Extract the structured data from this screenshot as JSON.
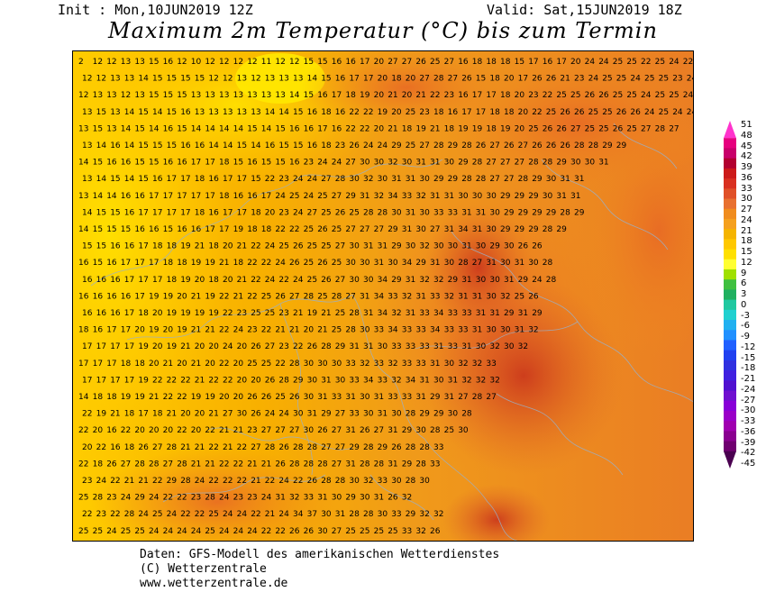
{
  "header": {
    "init": "Init : Mon,10JUN2019 12Z",
    "valid": "Valid: Sat,15JUN2019 18Z",
    "title": "Maximum 2m Temperatur (°C) bis zum Termin"
  },
  "legend": {
    "labels": [
      "51",
      "48",
      "45",
      "42",
      "39",
      "36",
      "33",
      "30",
      "27",
      "24",
      "21",
      "18",
      "15",
      "12",
      "9",
      "6",
      "3",
      "0",
      "-3",
      "-6",
      "-9",
      "-12",
      "-15",
      "-18",
      "-21",
      "-24",
      "-27",
      "-30",
      "-33",
      "-36",
      "-39",
      "-42",
      "-45"
    ],
    "colors": [
      "#ff33cc",
      "#e6007e",
      "#c8006a",
      "#b20030",
      "#cc1a1a",
      "#d93020",
      "#e05028",
      "#e87030",
      "#f08c1e",
      "#f5a01e",
      "#f5b400",
      "#ffc800",
      "#ffe000",
      "#ffff33",
      "#a0e000",
      "#40c040",
      "#20b060",
      "#20c8a0",
      "#20d0d0",
      "#20b0f0",
      "#2090ff",
      "#2060ff",
      "#2040f0",
      "#3030e0",
      "#4020e0",
      "#5010d0",
      "#7010d0",
      "#8800d8",
      "#9a00c8",
      "#a000b0",
      "#8a0090",
      "#700070",
      "#4a0050"
    ]
  },
  "chart_data": {
    "type": "heatmap",
    "rows": [
      "2 12 12 13 13 15 16 12 10 12 12 12 12 11 12 12 15 15 16 16 17 20 27 27 26 25 27 16 18 18 18 15 17 16 17 20 24 24 25 25 22 25 24 22",
      "12 12 13 13 14 15 15 15 15 12 12 13 12 13 13 13 14 15 16 17 17 20 18 20 27 28 27 26 15 18 20 17 26 26 21 23 24 25 25 24 25 25 23 24",
      "12 13 13 12 13 15 15 15 13 13 13 13 13 13 13 14 15 16 17 18 19 20 21 20 21 22 23 16 17 17 18 20 23 22 25 25 26 26 25 25 24 25 25 24",
      "13 15 13 14 15 14 15 16 13 13 13 13 13 14 14 15 16 18 16 22 22 19 20 25 23 18 16 17 17 18 18 20 22 25 26 26 25 25 26 26 24 25 24 24",
      "13 15 13 14 15 14 16 15 14 14 14 14 15 14 15 16 16 17 16 22 22 20 21 18 19 21 18 19 19 18 19 20 25 26 26 27 25 25 26 25 27 28 27",
      "13 14 16 14 15 15 15 16 16 14 14 15 14 16 15 15 16 18 23 26 24 24 29 25 27 28 29 28 26 27 26 27 26 26 26 28 28 29 29",
      "14 15 16 16 15 15 16 16 17 17 18 15 16 15 15 16 23 24 24 27 30 30 32 30 31 31 30 29 28 27 27 27 28 28 29 30 30 31",
      "13 14 15 14 15 16 17 17 18 16 17 17 15 22 23 24 24 27 28 30 32 30 31 31 30 29 29 28 28 27 27 28 29 30 31 31",
      "13 14 14 16 16 17 17 17 17 17 18 16 16 17 24 25 24 25 27 29 31 32 34 33 32 31 31 30 30 30 29 29 29 30 31 31",
      "14 15 15 16 17 17 17 17 18 16 17 17 18 20 23 24 27 25 26 25 28 28 30 31 30 33 33 31 31 30 29 29 29 29 28 29",
      "14 15 15 15 16 16 15 16 16 17 17 19 18 18 22 22 25 26 25 27 27 27 29 31 30 27 31 34 31 30 29 29 29 28 29",
      "15 15 16 16 17 18 18 19 21 18 20 21 22 24 25 26 25 25 27 30 31 31 29 30 32 30 30 31 30 29 30 26 26",
      "16 15 16 17 17 17 18 18 19 19 21 18 22 22 24 26 25 26 25 30 30 31 30 34 29 31 30 28 27 31 30 31 30 28",
      "16 16 16 17 17 17 18 19 20 18 20 21 22 24 22 24 25 26 27 30 30 34 29 31 32 32 29 31 30 30 31 29 24 28",
      "16 16 16 16 17 19 19 20 21 19 22 21 22 25 26 27 28 25 28 27 31 34 33 32 31 33 32 31 31 30 32 25 26",
      "16 16 16 17 18 20 19 19 19 19 22 23 25 25 23 21 19 21 25 28 31 34 32 31 33 34 33 33 31 31 29 31 29",
      "18 16 17 17 20 19 20 19 21 21 22 24 23 22 21 21 20 21 25 28 30 33 34 33 33 34 33 33 31 30 30 31 32",
      "17 17 17 17 19 20 19 21 20 20 24 20 26 27 23 22 26 28 29 31 31 30 33 33 33 31 33 31 30 32 30 32",
      "17 17 17 18 18 20 21 20 21 20 22 20 25 25 22 28 30 30 30 33 32 33 32 33 33 31 30 32 32 33",
      "17 17 17 17 19 22 22 22 21 22 22 20 20 26 28 29 30 31 30 33 34 33 32 34 31 30 31 32 32 32",
      "14 18 18 19 19 21 22 22 19 19 20 20 26 26 25 26 30 31 33 31 30 31 33 33 31 29 31 27 28 27",
      "22 19 21 18 17 18 21 20 20 21 27 30 26 24 24 30 31 29 27 33 30 31 30 28 29 29 30 28",
      "22 20 16 22 20 20 20 22 20 22 21 21 23 27 27 27 30 26 27 31 26 27 31 29 30 28 25 30",
      "20 22 16 18 26 27 28 21 21 22 21 22 27 28 26 28 28 27 27 29 28 29 26 28 28 33",
      "22 18 26 27 28 28 27 28 21 21 22 22 21 21 26 28 28 28 27 31 28 28 31 29 28 33",
      "23 24 22 21 21 22 29 28 24 22 22 22 21 22 24 22 26 28 28 30 32 33 30 28 30",
      "25 28 23 24 29 24 22 22 23 28 24 23 23 24 31 32 33 31 30 29 30 31 26 32",
      "22 23 22 28 24 25 24 22 22 25 24 24 22 21 24 34 37 30 31 28 28 30 33 29 32 32",
      "25 25 24 25 25 24 24 24 24 25 24 24 24 22 22 26 26 30 27 25 25 25 25 33 32 26"
    ]
  },
  "footer": {
    "line1": "Daten: GFS-Modell des amerikanischen Wetterdienstes",
    "line2": "(C) Wetterzentrale",
    "line3": "www.wetterzentrale.de"
  }
}
